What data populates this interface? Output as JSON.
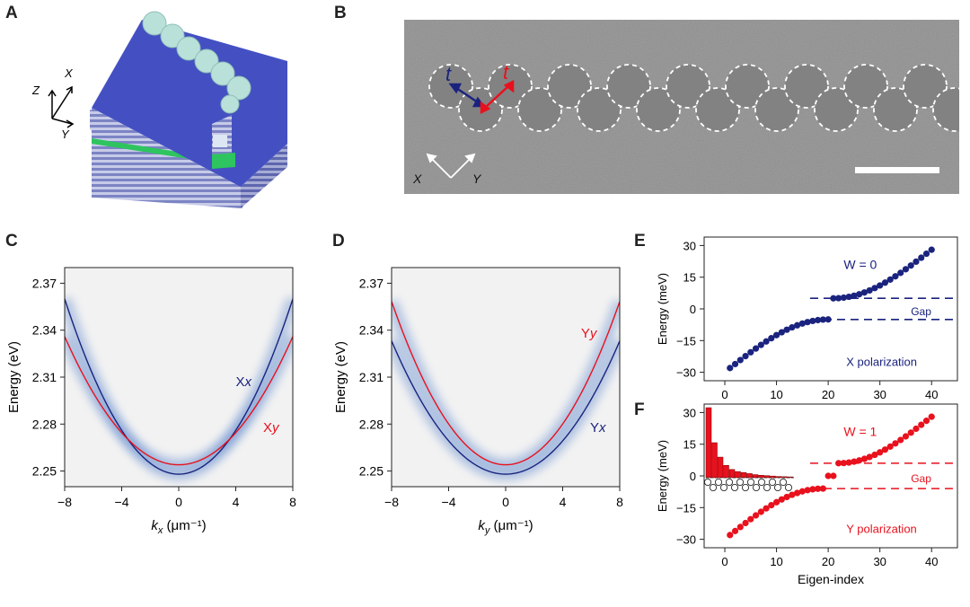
{
  "panels": {
    "A": {
      "letter": "A",
      "axes": [
        "Z",
        "X",
        "Y"
      ]
    },
    "B": {
      "letter": "B",
      "hop_label": "t",
      "axes": [
        "X",
        "Y"
      ]
    },
    "C": {
      "letter": "C"
    },
    "D": {
      "letter": "D"
    },
    "E": {
      "letter": "E"
    },
    "F": {
      "letter": "F"
    }
  },
  "colors": {
    "blue": "#1a237e",
    "red": "#e8111d",
    "band_glow": "#3d6fc4"
  },
  "chart_data": [
    {
      "id": "C",
      "type": "line",
      "ylabel": "Energy (eV)",
      "xlabel_main": "k",
      "xlabel_sub": "x",
      "xlabel_unit": " (μm⁻¹)",
      "xlim": [
        -8,
        8
      ],
      "ylim": [
        2.24,
        2.38
      ],
      "xticks": [
        "-8",
        "-4",
        "0",
        "4",
        "8"
      ],
      "yticks": [
        "2.25",
        "2.28",
        "2.31",
        "2.34",
        "2.37"
      ],
      "series": [
        {
          "name": "Xx",
          "label_main": "X",
          "label_italic": "x",
          "color": "#1a237e",
          "e0": 2.248,
          "curv": 0.00175
        },
        {
          "name": "Xy",
          "label_main": "X",
          "label_italic": "y",
          "color": "#e8111d",
          "e0": 2.254,
          "curv": 0.00128
        }
      ]
    },
    {
      "id": "D",
      "type": "line",
      "ylabel": "Energy (eV)",
      "xlabel_main": "k",
      "xlabel_sub": "y",
      "xlabel_unit": " (μm⁻¹)",
      "xlim": [
        -8,
        8
      ],
      "ylim": [
        2.24,
        2.38
      ],
      "xticks": [
        "-8",
        "-4",
        "0",
        "4",
        "8"
      ],
      "yticks": [
        "2.25",
        "2.28",
        "2.31",
        "2.34",
        "2.37"
      ],
      "series": [
        {
          "name": "Yy",
          "label_main": "Y",
          "label_italic": "y",
          "color": "#e8111d",
          "e0": 2.254,
          "curv": 0.00163
        },
        {
          "name": "Yx",
          "label_main": "Y",
          "label_italic": "x",
          "color": "#1a237e",
          "e0": 2.248,
          "curv": 0.00133
        }
      ]
    },
    {
      "id": "E",
      "type": "scatter",
      "ylabel": "Energy (meV)",
      "xlim": [
        -4,
        45
      ],
      "ylim": [
        -34,
        34
      ],
      "xticks": [
        "0",
        "10",
        "20",
        "30",
        "40"
      ],
      "yticks": [
        "30",
        "15",
        "0",
        "-15",
        "-30"
      ],
      "winding": "W = 0",
      "gap_label": "Gap",
      "polarization": "X polarization",
      "color": "#1a237e",
      "gap": [
        -5,
        5
      ],
      "n_points": 40,
      "e_max": 28,
      "gap_edge": 5,
      "edge_states": []
    },
    {
      "id": "F",
      "type": "scatter",
      "ylabel": "Energy (meV)",
      "xlabel": "Eigen-index",
      "xlim": [
        -4,
        45
      ],
      "ylim": [
        -34,
        34
      ],
      "xticks": [
        "0",
        "10",
        "20",
        "30",
        "40"
      ],
      "yticks": [
        "30",
        "15",
        "0",
        "-15",
        "-30"
      ],
      "winding": "W = 1",
      "gap_label": "Gap",
      "polarization": "Y polarization",
      "color": "#e8111d",
      "gap": [
        -6,
        6
      ],
      "n_points": 40,
      "e_max": 28,
      "gap_edge": 6,
      "edge_states": [
        0,
        0
      ],
      "inset_bars": [
        34,
        17,
        10,
        6,
        4,
        3,
        2.5,
        2,
        1.5,
        1.2,
        1,
        0.8,
        0.6,
        0.5,
        0.4
      ]
    }
  ]
}
